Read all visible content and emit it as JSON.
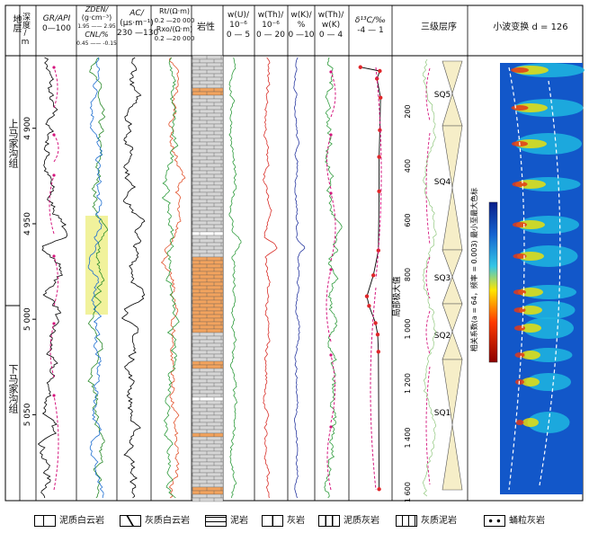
{
  "headers": {
    "formation": "地层",
    "depth": "深度/\nm",
    "gr": "GR/API",
    "gr_range": "0—100",
    "zden": "ZDEN/",
    "zden_unit": "(g·cm⁻³)",
    "zden_range": "1.95 —— 2.95",
    "cnl": "CNL/%",
    "cnl_range": "0.45 —— -0.15",
    "ac": "AC/",
    "ac_unit": "(μs·m⁻¹)",
    "ac_range": "230 —130",
    "rt": "Rt/(Ω·m)",
    "rt_range": "0.2 —20 000",
    "rxo": "Rxo/(Ω·m)",
    "rxo_range": "0.2 —20 000",
    "lith": "岩性",
    "u": "w(U)/",
    "u_unit": "10⁻⁶",
    "u_range": "0 — 5",
    "th": "w(Th)/",
    "th_unit": "10⁻⁶",
    "th_range": "0 — 20",
    "k": "w(K)/",
    "k_unit": "%",
    "k_range": "0 —10",
    "thk": "w(Th)/",
    "thk_unit": "w(K)",
    "thk_range": "0 — 4",
    "d13c": "δ¹³C/‰",
    "d13c_range": "-4 — 1",
    "seq": "三级层序",
    "wavelet": "小波变换 d = 126"
  },
  "formations": [
    "上马家沟组",
    "下马家沟组"
  ],
  "depth_ticks": [
    "4 900",
    "4 950",
    "5 000",
    "5 050"
  ],
  "sequences": [
    "SQ5",
    "SQ4",
    "SQ3",
    "SQ2",
    "SQ1"
  ],
  "local_max_label": "局部极大值",
  "local_max_ticks": [
    "200",
    "400",
    "600",
    "800",
    "1 000",
    "1 200",
    "1 400",
    "1 600"
  ],
  "colorbar_label": "相关系数(a = 64，频率 = 0.003)\n最小至最大色标",
  "legend": [
    {
      "label": "泥质白云岩"
    },
    {
      "label": "灰质白云岩"
    },
    {
      "label": "泥岩"
    },
    {
      "label": "灰岩"
    },
    {
      "label": "泥质灰岩"
    },
    {
      "label": "灰质泥岩"
    },
    {
      "label": "蛹粒灰岩"
    }
  ],
  "chart_data": {
    "type": "line",
    "depth_range": [
      4862,
      5095
    ],
    "d13c_points": [
      {
        "depth": 4868,
        "value": -2.9
      },
      {
        "depth": 4870,
        "value": -0.2
      },
      {
        "depth": 4874,
        "value": -0.6
      },
      {
        "depth": 4884,
        "value": -0.1
      },
      {
        "depth": 4901,
        "value": -0.2
      },
      {
        "depth": 4915,
        "value": -0.3
      },
      {
        "depth": 4933,
        "value": -0.3
      },
      {
        "depth": 4964,
        "value": -0.4
      },
      {
        "depth": 4977,
        "value": -1.1
      },
      {
        "depth": 4988,
        "value": -2.0
      },
      {
        "depth": 4993,
        "value": -1.7
      },
      {
        "depth": 5002,
        "value": -0.8
      },
      {
        "depth": 5008,
        "value": -0.5
      },
      {
        "depth": 5017,
        "value": -0.4
      },
      {
        "depth": 5089,
        "value": -0.3
      }
    ]
  }
}
